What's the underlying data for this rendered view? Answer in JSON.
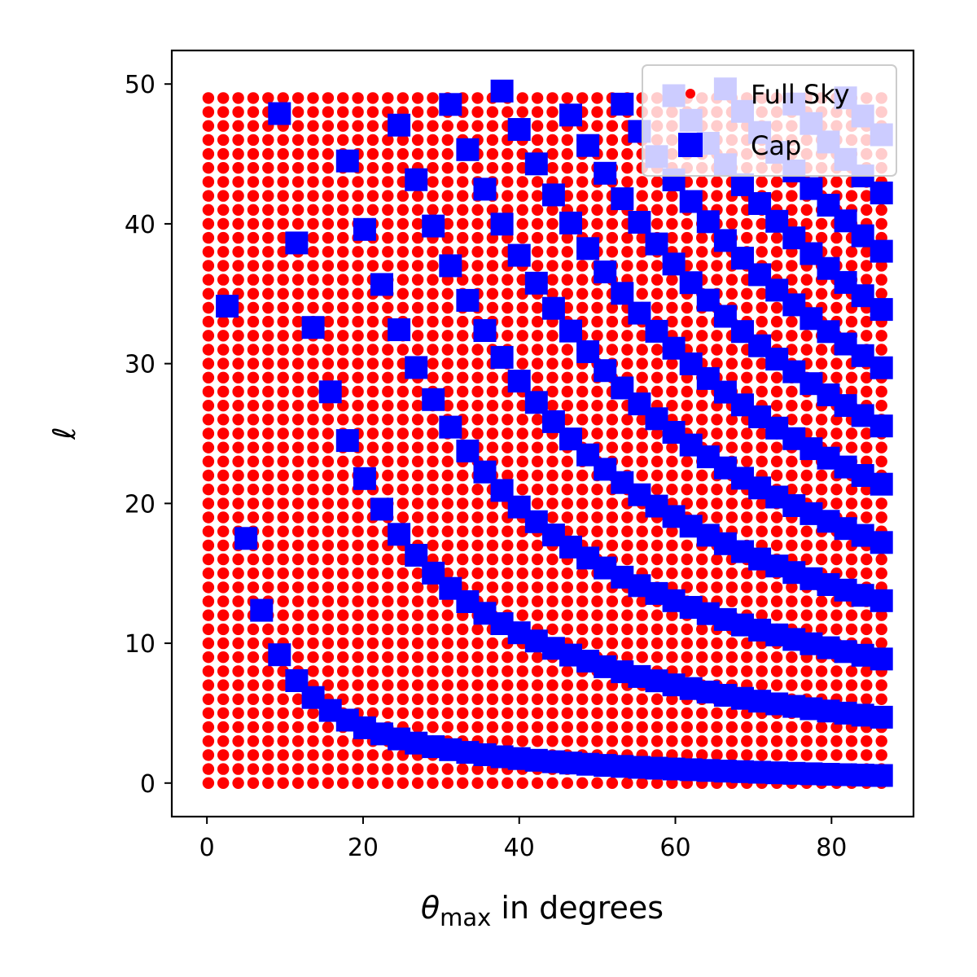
{
  "chart_data": {
    "type": "scatter",
    "xlabel": {
      "symbol": "θ",
      "subscript": "max",
      "suffix": " in degrees"
    },
    "ylabel": "ℓ",
    "xlim": [
      -4.5,
      90.5
    ],
    "ylim": [
      -2.4,
      52.4
    ],
    "xticks": [
      0,
      20,
      40,
      60,
      80
    ],
    "yticks": [
      0,
      10,
      20,
      30,
      40,
      50
    ],
    "grid": false,
    "legend_position": "top-right",
    "series": [
      {
        "name": "Full Sky",
        "marker": "circle",
        "color": "#ff0000",
        "description_of_values": "every integer l from 0 to 49 at each theta_max",
        "l_range": [
          0,
          49
        ],
        "x_values": [
          0.18,
          2.09,
          4.01,
          5.93,
          7.84,
          9.76,
          11.67,
          13.59,
          15.51,
          17.42,
          19.34,
          21.25,
          23.17,
          25.09,
          27.0,
          28.92,
          30.83,
          32.75,
          34.67,
          36.58,
          38.5,
          40.41,
          42.33,
          44.25,
          46.16,
          48.08,
          49.99,
          51.91,
          53.83,
          55.74,
          57.66,
          59.57,
          61.49,
          63.41,
          65.32,
          67.24,
          69.15,
          71.07,
          72.99,
          74.9,
          76.82,
          78.73,
          80.65,
          82.57,
          84.48,
          86.4
        ]
      },
      {
        "name": "Cap",
        "marker": "square",
        "color": "#0000ff",
        "x_values": [
          2.6,
          5.0,
          7.0,
          9.3,
          11.5,
          13.6,
          15.8,
          18.0,
          20.2,
          22.4,
          24.6,
          26.8,
          29.0,
          31.2,
          33.4,
          35.6,
          37.8,
          40.0,
          42.2,
          44.4,
          46.6,
          48.8,
          51.0,
          53.2,
          55.4,
          57.6,
          59.8,
          62.0,
          64.2,
          66.4,
          68.6,
          70.8,
          73.0,
          75.2,
          77.4,
          79.6,
          81.8,
          84.0,
          86.4
        ],
        "modes": [
          0.5,
          2.5,
          4.5,
          6.5,
          8.5,
          10.5,
          12.5,
          14.5,
          16.5,
          18.5,
          20.5,
          22.5,
          24.5,
          26.5,
          28.5,
          30.5,
          32.5,
          34.5,
          36.5,
          38.5,
          40.5,
          42.5,
          44.5,
          46.5,
          48.5
        ],
        "l_max": 50
      }
    ]
  }
}
